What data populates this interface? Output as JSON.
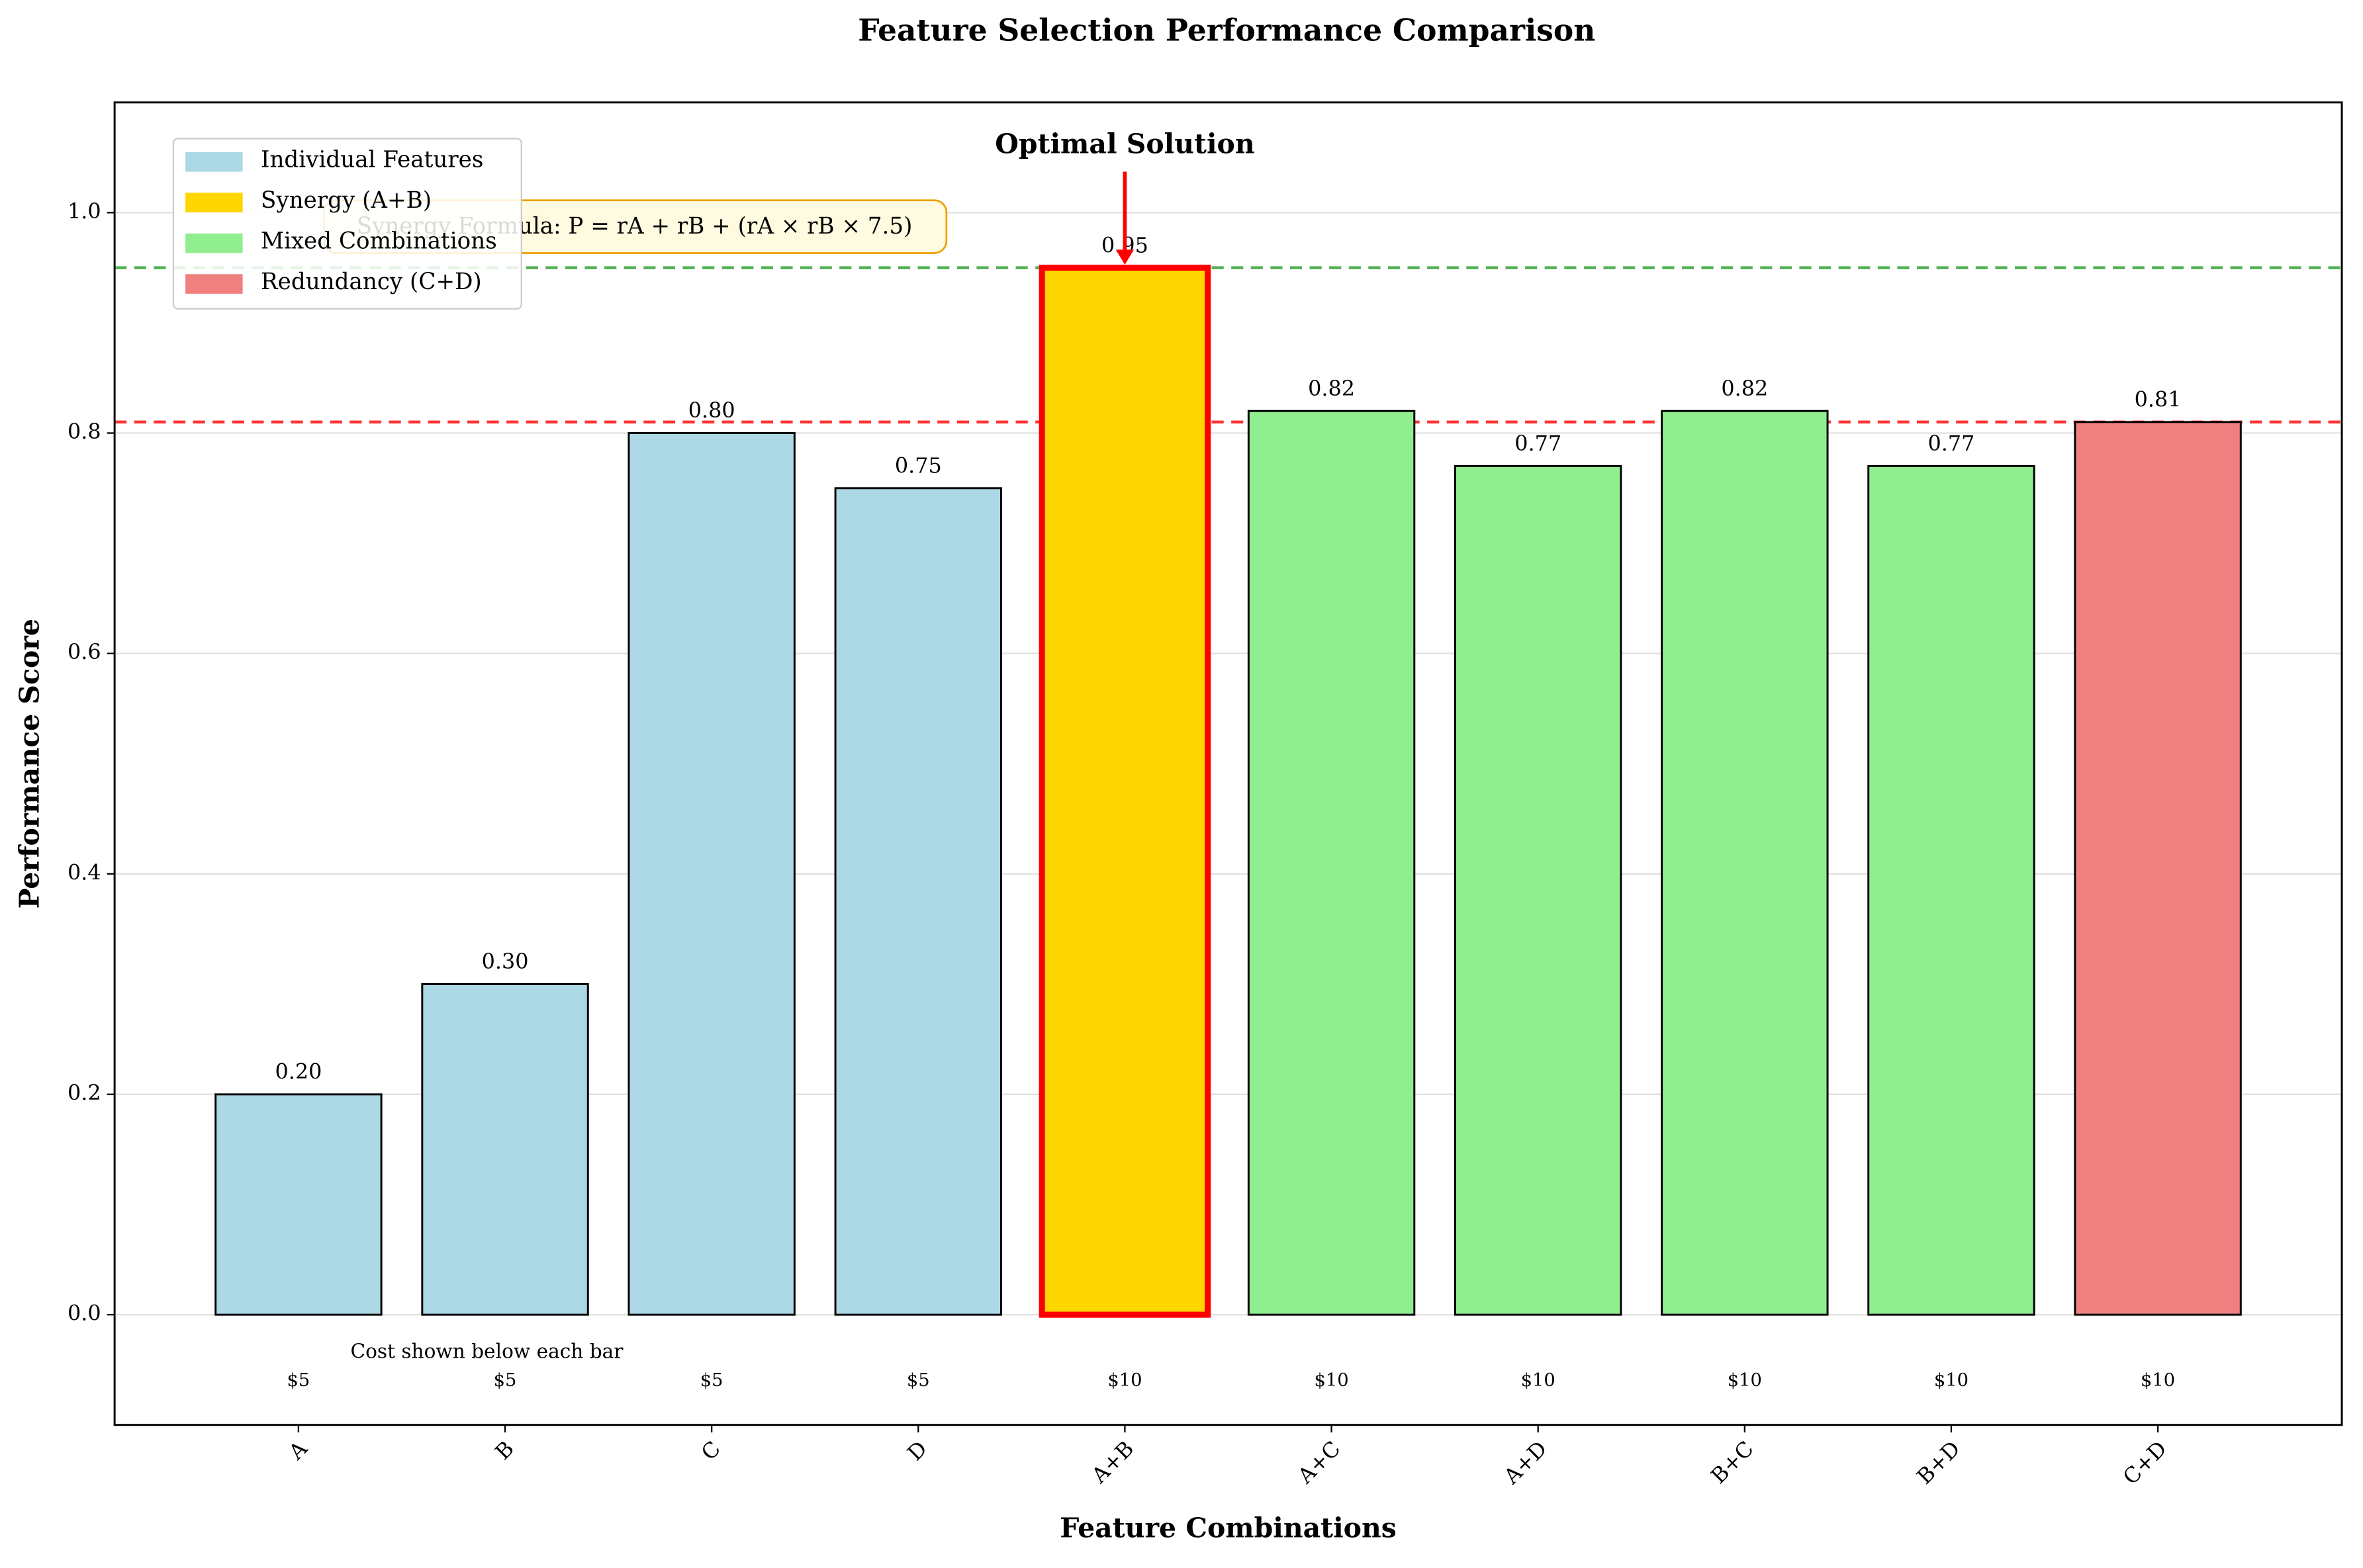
{
  "chart_data": {
    "type": "bar",
    "title": "Feature Selection Performance Comparison",
    "x_label": "Feature Combinations",
    "y_label": "Performance Score",
    "categories": [
      "A",
      "B",
      "C",
      "D",
      "A+B",
      "A+C",
      "A+D",
      "B+C",
      "B+D",
      "C+D"
    ],
    "values": [
      0.2,
      0.3,
      0.8,
      0.75,
      0.95,
      0.82,
      0.77,
      0.82,
      0.77,
      0.81
    ],
    "value_labels": [
      "0.20",
      "0.30",
      "0.80",
      "0.75",
      "0.95",
      "0.82",
      "0.77",
      "0.82",
      "0.77",
      "0.81"
    ],
    "colors": [
      "#add8e6",
      "#add8e6",
      "#add8e6",
      "#add8e6",
      "#ffd700",
      "#90ee90",
      "#90ee90",
      "#90ee90",
      "#90ee90",
      "#f08080"
    ],
    "edge_colors": [
      "#000000",
      "#000000",
      "#000000",
      "#000000",
      "#ff0000",
      "#000000",
      "#000000",
      "#000000",
      "#000000",
      "#000000"
    ],
    "costs": [
      "$5",
      "$5",
      "$5",
      "$5",
      "$10",
      "$10",
      "$10",
      "$10",
      "$10",
      "$10"
    ],
    "cost_note": "Cost shown below each bar",
    "ylim": [
      -0.1,
      1.1
    ],
    "yticks": [
      {
        "value": 0,
        "label": "0.0"
      },
      0.2,
      0.4,
      0.6,
      0.8,
      {
        "value": 1,
        "label": "1.0"
      }
    ],
    "grid": true,
    "reference_lines": [
      {
        "value": 0.95,
        "color": "#2ca02c"
      },
      {
        "value": 0.81,
        "color": "#ff0000"
      }
    ],
    "annotation": {
      "text": "Optimal Solution",
      "target": "A+B",
      "color": "#ff0000"
    },
    "formula": "Synergy Formula: P = rA + rB + (rA × rB × 7.5)",
    "legend_position": "upper left",
    "legend": [
      {
        "name": "Individual Features",
        "color": "#add8e6"
      },
      {
        "name": "Synergy (A+B)",
        "color": "#ffd700"
      },
      {
        "name": "Mixed Combinations",
        "color": "#90ee90"
      },
      {
        "name": "Redundancy (C+D)",
        "color": "#f08080"
      }
    ]
  }
}
